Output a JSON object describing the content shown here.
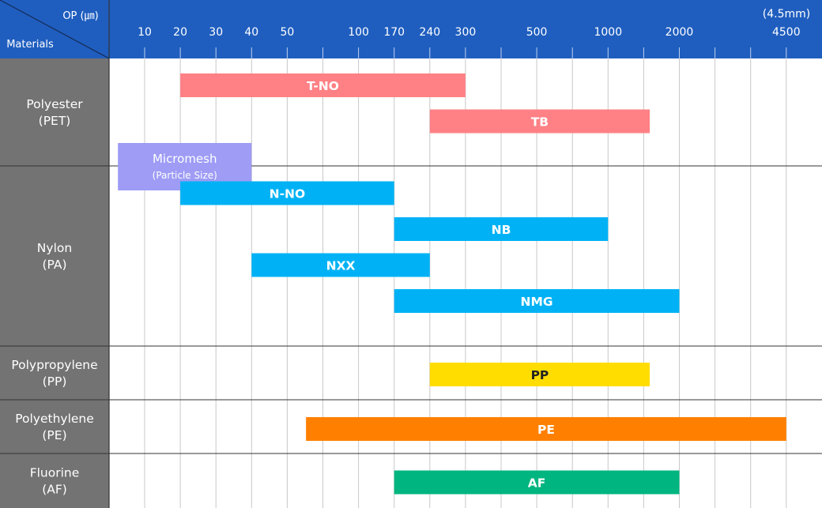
{
  "chart_data": {
    "type": "range_bar",
    "corner": {
      "top_label": "OP (㎛)",
      "bottom_label": "Materials"
    },
    "x_ticks": [
      "10",
      "20",
      "30",
      "40",
      "50",
      "100",
      "170",
      "240",
      "300",
      "500",
      "1000",
      "2000",
      "4500"
    ],
    "x_extra_label": "(4.5mm)",
    "x_unit": "µm",
    "groups": [
      {
        "name": "Polyester",
        "code": "(PET)",
        "bars": [
          {
            "label": "T-NO",
            "from": "20",
            "to": "300",
            "color": "#ff8085"
          },
          {
            "label": "TB",
            "from": "240",
            "to": "1500",
            "color": "#ff8085"
          },
          {
            "label": "Micromesh",
            "sublabel": "(Particle Size)",
            "from": "5",
            "to": "40",
            "color": "#9e9cf5"
          }
        ]
      },
      {
        "name": "Nylon",
        "code": "(PA)",
        "bars": [
          {
            "label": "N-NO",
            "from": "20",
            "to": "170",
            "color": "#00b2f5"
          },
          {
            "label": "NB",
            "from": "170",
            "to": "1000",
            "color": "#00b2f5"
          },
          {
            "label": "NXX",
            "from": "40",
            "to": "240",
            "color": "#00b2f5"
          },
          {
            "label": "NMG",
            "from": "170",
            "to": "2000",
            "color": "#00b2f5"
          }
        ]
      },
      {
        "name": "Polypropylene",
        "code": "(PP)",
        "bars": [
          {
            "label": "PP",
            "from": "240",
            "to": "1500",
            "color": "#ffdd00",
            "text_color": "#222222"
          }
        ]
      },
      {
        "name": "Polyethylene",
        "code": "(PE)",
        "bars": [
          {
            "label": "PE",
            "from": "60",
            "to": "4500",
            "color": "#ff8000"
          }
        ]
      },
      {
        "name": "Fluorine",
        "code": "(AF)",
        "bars": [
          {
            "label": "AF",
            "from": "170",
            "to": "2000",
            "color": "#00b57f"
          }
        ]
      }
    ]
  },
  "colors": {
    "header": "#1f5ebf",
    "sidebar": "#737373",
    "grid": "#c8c8c8",
    "separator": "#333333"
  }
}
